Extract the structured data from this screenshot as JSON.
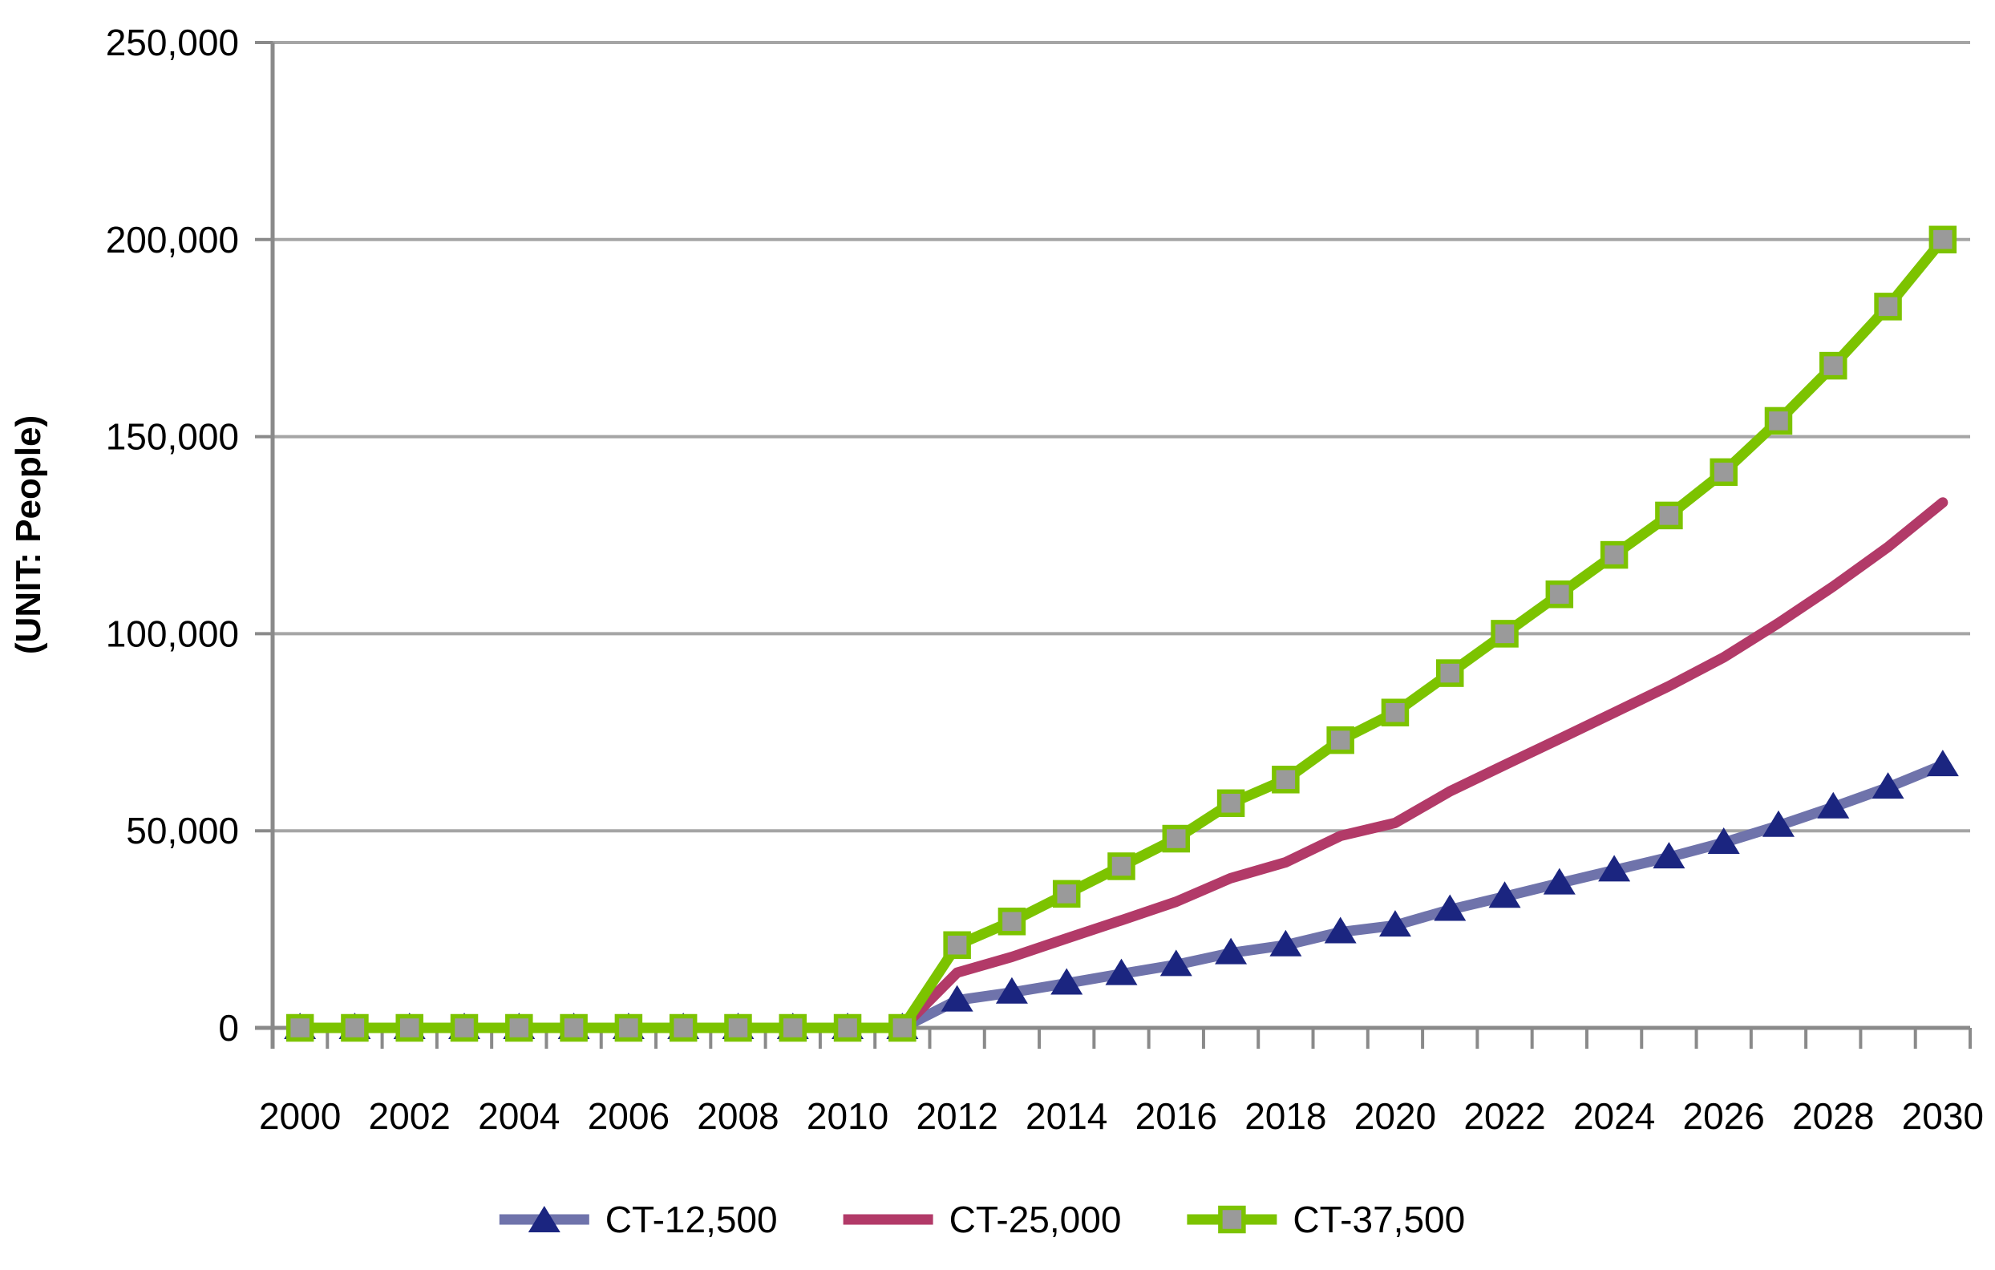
{
  "chart_data": {
    "type": "line",
    "title": "",
    "ylabel": "(UNIT: People)",
    "xlabel": "",
    "x": [
      2000,
      2001,
      2002,
      2003,
      2004,
      2005,
      2006,
      2007,
      2008,
      2009,
      2010,
      2011,
      2012,
      2013,
      2014,
      2015,
      2016,
      2017,
      2018,
      2019,
      2020,
      2021,
      2022,
      2023,
      2024,
      2025,
      2026,
      2027,
      2028,
      2029,
      2030
    ],
    "x_tick_labels": [
      "2000",
      "2002",
      "2004",
      "2006",
      "2008",
      "2010",
      "2012",
      "2014",
      "2016",
      "2018",
      "2020",
      "2022",
      "2024",
      "2026",
      "2028",
      "2030"
    ],
    "ylim": [
      0,
      250000
    ],
    "y_ticks": [
      0,
      50000,
      100000,
      150000,
      200000,
      250000
    ],
    "y_tick_labels": [
      "0",
      "50,000",
      "100,000",
      "150,000",
      "200,000",
      "250,000"
    ],
    "grid": "horizontal",
    "legend_position": "bottom",
    "series": [
      {
        "name": "CT-12,500",
        "color": "#6F73AB",
        "marker": "triangle",
        "marker_color": "#1B2580",
        "values": [
          0,
          0,
          0,
          0,
          0,
          0,
          0,
          0,
          0,
          0,
          0,
          0,
          7000,
          9000,
          11300,
          13700,
          16000,
          19000,
          21000,
          24300,
          26000,
          30000,
          33300,
          36700,
          40000,
          43300,
          47000,
          51300,
          56000,
          61000,
          66700
        ]
      },
      {
        "name": "CT-25,000",
        "color": "#B23A68",
        "marker": "none",
        "marker_color": "#B23A68",
        "values": [
          0,
          0,
          0,
          0,
          0,
          0,
          0,
          0,
          0,
          0,
          0,
          0,
          14000,
          18000,
          22700,
          27300,
          32000,
          38000,
          42000,
          48700,
          52000,
          60000,
          66700,
          73300,
          80000,
          86700,
          94000,
          102700,
          112000,
          122000,
          133300
        ]
      },
      {
        "name": "CT-37,500",
        "color": "#7CC300",
        "marker": "square",
        "marker_color": "#9A9A9A",
        "values": [
          0,
          0,
          0,
          0,
          0,
          0,
          0,
          0,
          0,
          0,
          0,
          0,
          21000,
          27000,
          34000,
          41000,
          48000,
          57000,
          63000,
          73000,
          80000,
          90000,
          100000,
          110000,
          120000,
          130000,
          141000,
          154000,
          168000,
          183000,
          200000
        ]
      }
    ],
    "colors": {
      "background": "#ffffff",
      "gridline": "#A5A5A5",
      "axis": "#8A8A8A",
      "text": "#000000"
    }
  }
}
